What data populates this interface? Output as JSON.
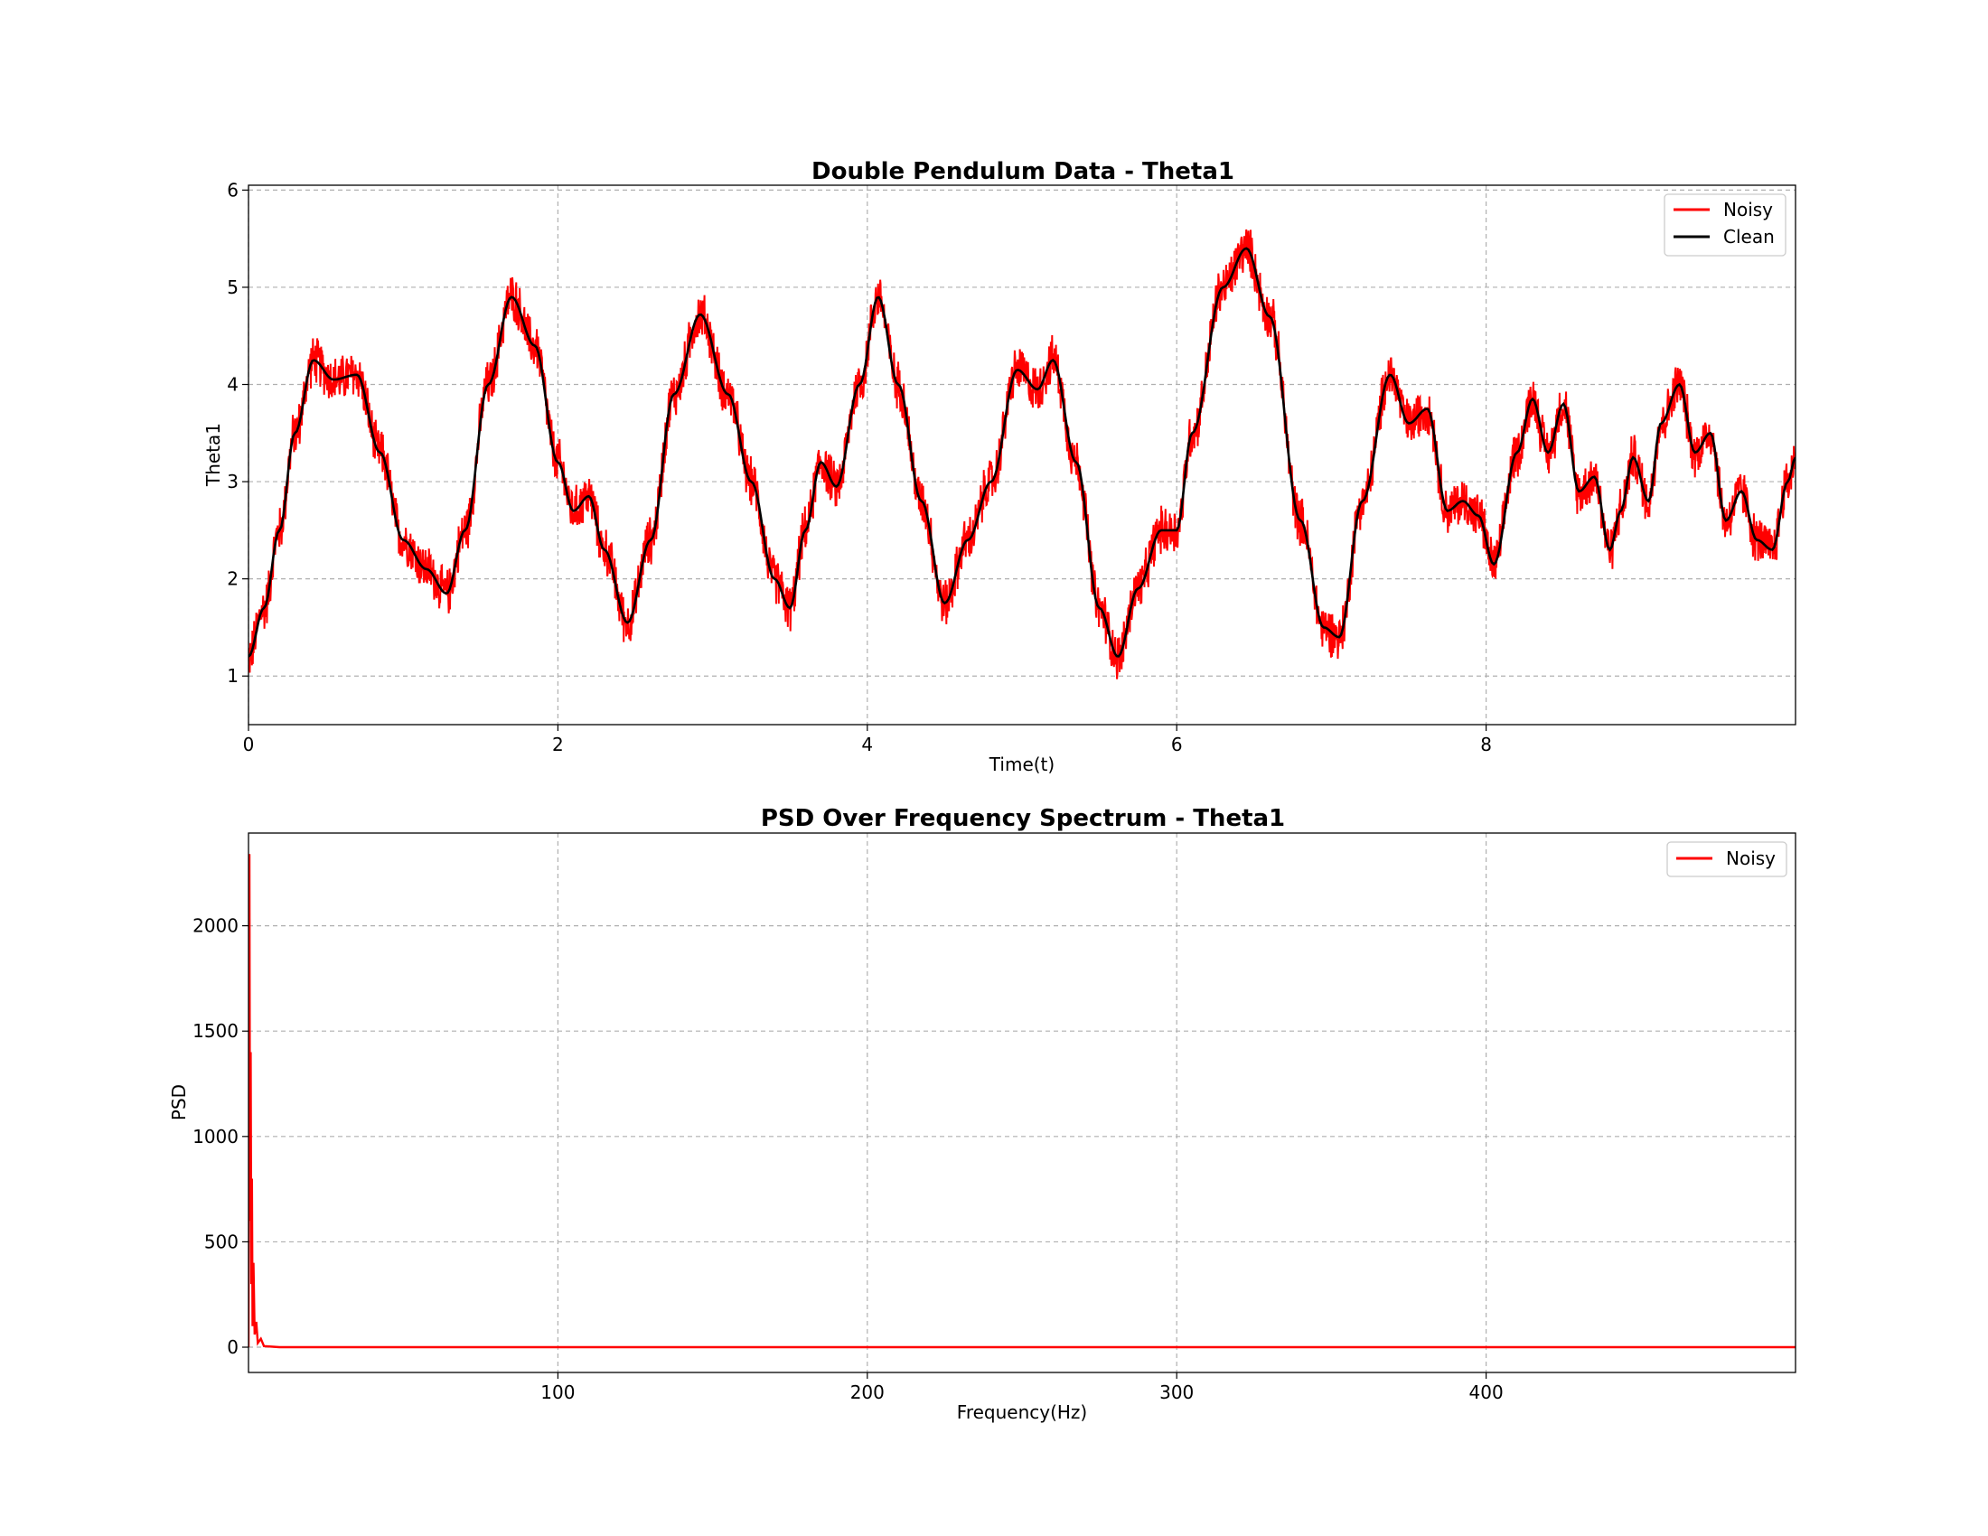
{
  "chart_data": [
    {
      "type": "line",
      "title": "Double Pendulum Data - Theta1",
      "xlabel": "Time(t)",
      "ylabel": "Theta1",
      "xlim": [
        0,
        10
      ],
      "ylim": [
        0.5,
        6.05
      ],
      "xticks": [
        0,
        2,
        4,
        6,
        8
      ],
      "yticks": [
        1,
        2,
        3,
        4,
        5,
        6
      ],
      "grid": true,
      "legend_position": "top-right",
      "colors": {
        "noisy": "#ff0000",
        "clean": "#000000"
      },
      "series": [
        {
          "name": "Noisy",
          "noise_band": 0.28,
          "note_style": "clean curve plus high-frequency noise"
        },
        {
          "name": "Clean",
          "x": [
            0,
            0.1,
            0.2,
            0.3,
            0.42,
            0.55,
            0.7,
            0.85,
            1.0,
            1.15,
            1.28,
            1.4,
            1.55,
            1.7,
            1.85,
            2.0,
            2.1,
            2.2,
            2.3,
            2.45,
            2.6,
            2.75,
            2.92,
            3.1,
            3.25,
            3.4,
            3.5,
            3.6,
            3.7,
            3.8,
            3.95,
            4.07,
            4.2,
            4.35,
            4.5,
            4.65,
            4.8,
            4.97,
            5.1,
            5.2,
            5.35,
            5.5,
            5.62,
            5.75,
            5.9,
            6.0,
            6.1,
            6.3,
            6.45,
            6.6,
            6.8,
            6.95,
            7.05,
            7.2,
            7.38,
            7.5,
            7.62,
            7.75,
            7.85,
            7.95,
            8.05,
            8.2,
            8.3,
            8.4,
            8.5,
            8.6,
            8.7,
            8.8,
            8.87,
            8.95,
            9.05,
            9.13,
            9.25,
            9.35,
            9.45,
            9.55,
            9.65,
            9.75,
            9.85,
            9.95,
            10.0
          ],
          "y": [
            1.2,
            1.7,
            2.5,
            3.5,
            4.25,
            4.05,
            4.1,
            3.3,
            2.4,
            2.1,
            1.85,
            2.5,
            4.0,
            4.9,
            4.4,
            3.2,
            2.7,
            2.85,
            2.3,
            1.55,
            2.4,
            3.9,
            4.72,
            3.9,
            3.0,
            2.0,
            1.7,
            2.5,
            3.2,
            2.95,
            4.0,
            4.9,
            4.0,
            2.8,
            1.75,
            2.4,
            3.0,
            4.15,
            3.95,
            4.25,
            3.2,
            1.7,
            1.2,
            1.9,
            2.5,
            2.5,
            3.5,
            5.0,
            5.4,
            4.7,
            2.6,
            1.5,
            1.4,
            2.8,
            4.1,
            3.6,
            3.75,
            2.7,
            2.8,
            2.65,
            2.15,
            3.3,
            3.85,
            3.3,
            3.8,
            2.9,
            3.05,
            2.3,
            2.7,
            3.25,
            2.8,
            3.6,
            4.0,
            3.3,
            3.5,
            2.6,
            2.9,
            2.4,
            2.3,
            3.0,
            3.25
          ]
        }
      ]
    },
    {
      "type": "line",
      "title": "PSD Over Frequency Spectrum - Theta1",
      "xlabel": "Frequency(Hz)",
      "ylabel": "PSD",
      "xlim": [
        0,
        500
      ],
      "ylim": [
        -120,
        2440
      ],
      "xticks": [
        100,
        200,
        300,
        400
      ],
      "yticks": [
        0,
        500,
        1000,
        1500,
        2000
      ],
      "grid": true,
      "legend_position": "top-right",
      "colors": {
        "noisy": "#ff0000"
      },
      "series": [
        {
          "name": "Noisy",
          "x": [
            0,
            0.3,
            0.5,
            0.7,
            0.9,
            1.1,
            1.3,
            1.6,
            2.0,
            2.5,
            3.0,
            4.0,
            5.0,
            10,
            50,
            100,
            200,
            300,
            400,
            500
          ],
          "y": [
            0,
            2340,
            600,
            1400,
            300,
            800,
            100,
            400,
            60,
            120,
            20,
            40,
            5,
            0,
            0,
            0,
            0,
            0,
            0,
            0
          ]
        }
      ]
    }
  ]
}
